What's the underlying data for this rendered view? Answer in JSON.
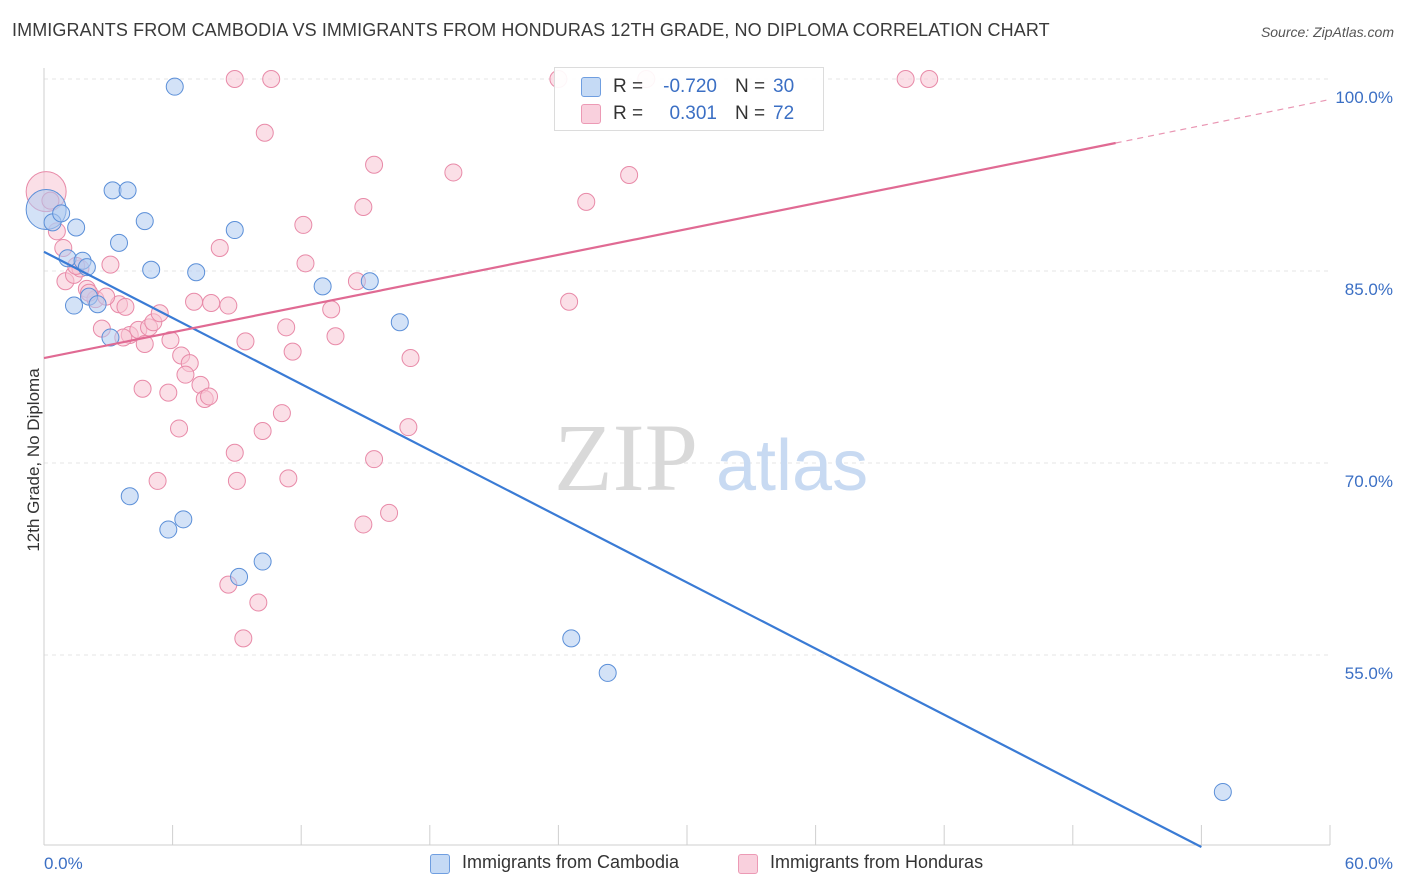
{
  "title": "IMMIGRANTS FROM CAMBODIA VS IMMIGRANTS FROM HONDURAS 12TH GRADE, NO DIPLOMA CORRELATION CHART",
  "source": "Source: ZipAtlas.com",
  "watermark": {
    "zip": "ZIP",
    "atlas": "atlas"
  },
  "legend": {
    "rows": [
      {
        "r_label": "R =",
        "r_value": "-0.720",
        "n_label": "N =",
        "n_value": "30"
      },
      {
        "r_label": "R =",
        "r_value": "0.301",
        "n_label": "N =",
        "n_value": "72"
      }
    ]
  },
  "bottom_legend": {
    "cambodia": "Immigrants from Cambodia",
    "honduras": "Immigrants from Honduras"
  },
  "colors": {
    "cambodia_fill": "#aecbf0",
    "cambodia_stroke": "#5b8fd8",
    "cambodia_line": "#3a7bd5",
    "honduras_fill": "#f7c4d4",
    "honduras_stroke": "#e88aa8",
    "honduras_line": "#e06a93",
    "axis_label": "#3b6fc4",
    "grid": "#e6e6e6"
  },
  "chart_data": {
    "type": "scatter",
    "xlabel": "",
    "ylabel": "12th Grade, No Diploma",
    "xlim": [
      0,
      60
    ],
    "ylim": [
      40,
      101
    ],
    "x_tick_labels": [
      {
        "value": 0,
        "label": "0.0%"
      },
      {
        "value": 60,
        "label": "60.0%"
      }
    ],
    "y_tick_labels": [
      {
        "value": 55,
        "label": "55.0%"
      },
      {
        "value": 70,
        "label": "70.0%"
      },
      {
        "value": 85,
        "label": "85.0%"
      },
      {
        "value": 100,
        "label": "100.0%"
      }
    ],
    "series": [
      {
        "name": "Immigrants from Cambodia",
        "R": -0.72,
        "N": 30,
        "trend": {
          "x": [
            0,
            54
          ],
          "y": [
            86.5,
            40.0
          ],
          "dashed_after": null
        },
        "points": [
          [
            0.1,
            89.8,
            20
          ],
          [
            0.4,
            88.8,
            9
          ],
          [
            0.8,
            89.5,
            9
          ],
          [
            1.5,
            88.4,
            9
          ],
          [
            1.1,
            86.0,
            9
          ],
          [
            1.8,
            85.8,
            9
          ],
          [
            2.0,
            85.3,
            9
          ],
          [
            2.1,
            83.0,
            9
          ],
          [
            2.5,
            82.4,
            9
          ],
          [
            1.4,
            82.3,
            9
          ],
          [
            3.2,
            91.3,
            9
          ],
          [
            3.9,
            91.3,
            9
          ],
          [
            3.5,
            87.2,
            9
          ],
          [
            4.7,
            88.9,
            9
          ],
          [
            5.0,
            85.1,
            9
          ],
          [
            7.1,
            84.9,
            9
          ],
          [
            8.9,
            88.2,
            9
          ],
          [
            3.1,
            79.8,
            9
          ],
          [
            6.1,
            99.4,
            9
          ],
          [
            13.0,
            83.8,
            9
          ],
          [
            15.2,
            84.2,
            9
          ],
          [
            16.6,
            81.0,
            9
          ],
          [
            4.0,
            67.4,
            9
          ],
          [
            5.8,
            64.8,
            9
          ],
          [
            6.5,
            65.6,
            9
          ],
          [
            9.1,
            61.1,
            9
          ],
          [
            10.2,
            62.3,
            9
          ],
          [
            24.6,
            56.3,
            9
          ],
          [
            26.3,
            53.6,
            9
          ],
          [
            55.0,
            44.3,
            9
          ]
        ]
      },
      {
        "name": "Immigrants from Honduras",
        "R": 0.301,
        "N": 72,
        "trend": {
          "x": [
            0,
            50,
            60
          ],
          "y": [
            78.2,
            95.0,
            98.4
          ],
          "dashed_after": 50
        },
        "points": [
          [
            0.1,
            91.2,
            20
          ],
          [
            0.3,
            90.5,
            9
          ],
          [
            0.6,
            88.1,
            9
          ],
          [
            0.9,
            86.8,
            9
          ],
          [
            1.0,
            84.2,
            9
          ],
          [
            1.4,
            84.7,
            9
          ],
          [
            1.7,
            85.2,
            9
          ],
          [
            2.0,
            83.6,
            9
          ],
          [
            2.4,
            82.8,
            9
          ],
          [
            3.1,
            85.5,
            9
          ],
          [
            3.5,
            82.4,
            9
          ],
          [
            3.8,
            82.2,
            9
          ],
          [
            2.7,
            80.5,
            9
          ],
          [
            4.0,
            80.0,
            9
          ],
          [
            4.4,
            80.4,
            9
          ],
          [
            4.9,
            80.6,
            9
          ],
          [
            5.1,
            81.0,
            9
          ],
          [
            5.4,
            81.7,
            9
          ],
          [
            4.7,
            79.3,
            9
          ],
          [
            5.9,
            79.6,
            9
          ],
          [
            6.4,
            78.4,
            9
          ],
          [
            6.8,
            77.8,
            9
          ],
          [
            6.6,
            76.9,
            9
          ],
          [
            7.3,
            76.1,
            9
          ],
          [
            7.5,
            75.0,
            9
          ],
          [
            7.7,
            75.2,
            9
          ],
          [
            4.6,
            75.8,
            9
          ],
          [
            5.8,
            75.5,
            9
          ],
          [
            6.3,
            72.7,
            9
          ],
          [
            7.0,
            82.6,
            9
          ],
          [
            7.8,
            82.5,
            9
          ],
          [
            8.2,
            86.8,
            9
          ],
          [
            8.6,
            82.3,
            9
          ],
          [
            9.4,
            79.5,
            9
          ],
          [
            8.9,
            70.8,
            9
          ],
          [
            9.0,
            68.6,
            9
          ],
          [
            10.2,
            72.5,
            9
          ],
          [
            11.1,
            73.9,
            9
          ],
          [
            11.3,
            80.6,
            9
          ],
          [
            11.6,
            78.7,
            9
          ],
          [
            11.4,
            68.8,
            9
          ],
          [
            12.2,
            85.6,
            9
          ],
          [
            12.1,
            88.6,
            9
          ],
          [
            13.4,
            82.0,
            9
          ],
          [
            13.6,
            79.9,
            9
          ],
          [
            14.6,
            84.2,
            9
          ],
          [
            14.9,
            90.0,
            9
          ],
          [
            15.4,
            70.3,
            9
          ],
          [
            14.9,
            65.2,
            9
          ],
          [
            15.4,
            93.3,
            9
          ],
          [
            17.1,
            78.2,
            9
          ],
          [
            17.0,
            72.8,
            9
          ],
          [
            16.1,
            66.1,
            9
          ],
          [
            10.3,
            95.8,
            9
          ],
          [
            8.9,
            100.0,
            9
          ],
          [
            10.6,
            100.0,
            9
          ],
          [
            19.1,
            92.7,
            9
          ],
          [
            24.0,
            100.0,
            9
          ],
          [
            25.3,
            90.4,
            9
          ],
          [
            24.5,
            82.6,
            9
          ],
          [
            27.3,
            92.5,
            9
          ],
          [
            28.1,
            100.0,
            9
          ],
          [
            40.2,
            100.0,
            9
          ],
          [
            41.3,
            100.0,
            9
          ],
          [
            5.3,
            68.6,
            9
          ],
          [
            8.6,
            60.5,
            9
          ],
          [
            9.3,
            56.3,
            9
          ],
          [
            10.0,
            59.1,
            9
          ],
          [
            2.1,
            83.3,
            9
          ],
          [
            2.9,
            83.0,
            9
          ],
          [
            3.7,
            79.8,
            9
          ],
          [
            1.5,
            85.4,
            9
          ]
        ]
      }
    ]
  }
}
